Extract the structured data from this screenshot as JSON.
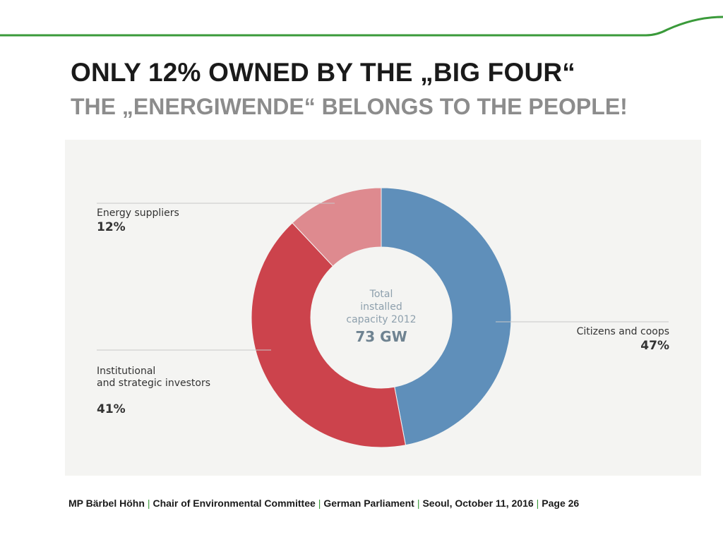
{
  "slide": {
    "title": "ONLY 12% OWNED BY THE „BIG FOUR“",
    "subtitle": "THE „ENERGIWENDE“ BELONGS TO THE PEOPLE!",
    "accent_color": "#3a9a3a",
    "footer": {
      "author": "MP Bärbel Höhn",
      "role": "Chair of Environmental Committee",
      "org": "German Parliament",
      "event": "Seoul, October 11, 2016",
      "page": "Page 26"
    }
  },
  "chart_data": {
    "type": "pie",
    "donut": true,
    "title": "",
    "center_label": "Total\ninstalled\ncapacity 2012",
    "center_value": "73 GW",
    "slices": [
      {
        "name": "Citizens and coops",
        "value": 47,
        "label": "47%",
        "color": "#5f8fba"
      },
      {
        "name": "Institutional\nand strategic investors",
        "value": 41,
        "label": "41%",
        "color": "#cc434c"
      },
      {
        "name": "Energy suppliers",
        "value": 12,
        "label": "12%",
        "color": "#de8a8f"
      }
    ]
  }
}
